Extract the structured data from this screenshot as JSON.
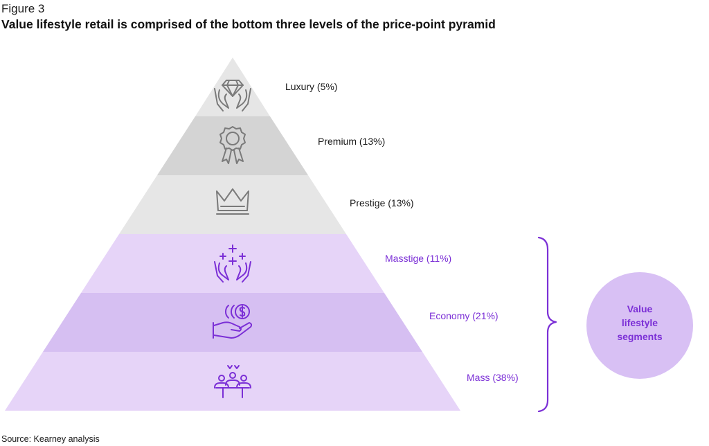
{
  "figure_label": "Figure 3",
  "title": "Value lifestyle retail is comprised of the bottom three levels of the price-point pyramid",
  "source": "Source: Kearney analysis",
  "levels": [
    {
      "label": "Luxury (5%)",
      "icon": "diamond-hands-icon",
      "group": "upper"
    },
    {
      "label": "Premium (13%)",
      "icon": "award-ribbon-icon",
      "group": "upper"
    },
    {
      "label": "Prestige (13%)",
      "icon": "crown-icon",
      "group": "upper"
    },
    {
      "label": "Masstige (11%)",
      "icon": "sparkle-hands-icon",
      "group": "value"
    },
    {
      "label": "Economy (21%)",
      "icon": "coins-hand-icon",
      "group": "value"
    },
    {
      "label": "Mass (38%)",
      "icon": "people-group-icon",
      "group": "value"
    }
  ],
  "bracket": {
    "label": "Value lifestyle segments"
  },
  "colors": {
    "upper_band_light": "#e6e6e6",
    "upper_band_mid": "#d4d4d4",
    "value_band_light": "#e6d4f8",
    "value_band_mid": "#d6bff2",
    "upper_icon": "#7a7a7a",
    "value_accent": "#7b2fd6",
    "bubble_fill": "#d8c0f4"
  }
}
